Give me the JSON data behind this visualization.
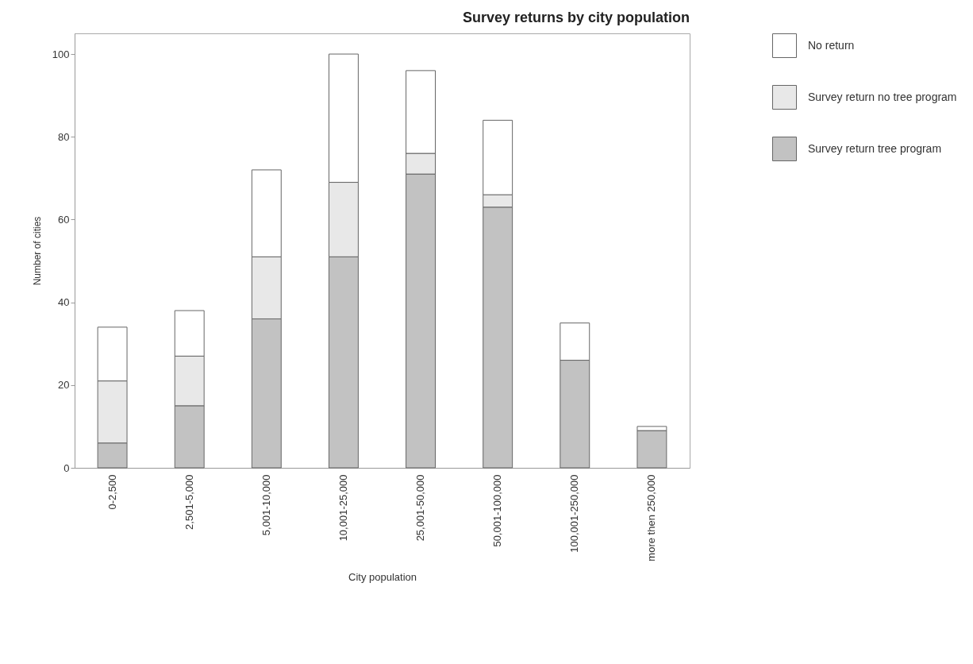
{
  "chart_data": {
    "type": "bar",
    "title": "Survey returns by city population",
    "xlabel": "City population",
    "ylabel": "Number of cities",
    "categories": [
      "0-2,500",
      "2,501-5,000",
      "5,001-10,000",
      "10,001-25,000",
      "25,001-50,000",
      "50,001-100,000",
      "100,001-250,000",
      "more then 250,000"
    ],
    "series": [
      {
        "name": "Survey return tree program",
        "color": "#c2c2c2",
        "values": [
          6,
          15,
          36,
          51,
          71,
          63,
          26,
          9
        ]
      },
      {
        "name": "Survey return no tree program",
        "color": "#e8e8e8",
        "values": [
          15,
          12,
          15,
          18,
          5,
          3,
          null,
          null
        ]
      },
      {
        "name": "No return",
        "color": "#ffffff",
        "values": [
          13,
          11,
          21,
          31,
          20,
          18,
          9,
          1
        ]
      }
    ],
    "stacked": true,
    "ylim": [
      0,
      105
    ],
    "yticks": [
      0,
      20,
      40,
      60,
      80,
      100
    ],
    "legend": "top right"
  }
}
